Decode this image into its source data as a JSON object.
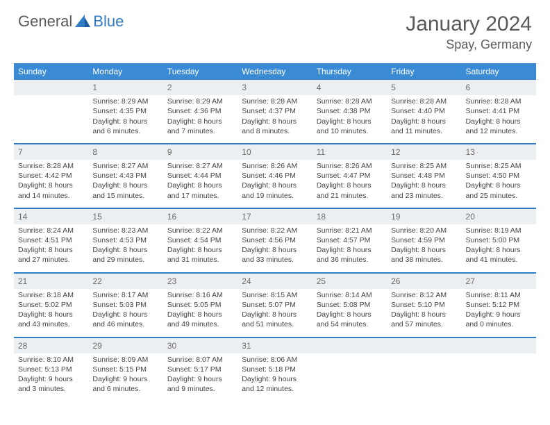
{
  "brand": {
    "part1": "General",
    "part2": "Blue"
  },
  "title": "January 2024",
  "location": "Spay, Germany",
  "colors": {
    "header_bg": "#3b8bd4",
    "rule": "#2f7bc4",
    "daynum_bg": "#eceff1",
    "text": "#444444",
    "title_text": "#5a5a5a"
  },
  "weekdays": [
    "Sunday",
    "Monday",
    "Tuesday",
    "Wednesday",
    "Thursday",
    "Friday",
    "Saturday"
  ],
  "weeks": [
    {
      "nums": [
        "",
        "1",
        "2",
        "3",
        "4",
        "5",
        "6"
      ],
      "cells": [
        "",
        "Sunrise: 8:29 AM\nSunset: 4:35 PM\nDaylight: 8 hours\nand 6 minutes.",
        "Sunrise: 8:29 AM\nSunset: 4:36 PM\nDaylight: 8 hours\nand 7 minutes.",
        "Sunrise: 8:28 AM\nSunset: 4:37 PM\nDaylight: 8 hours\nand 8 minutes.",
        "Sunrise: 8:28 AM\nSunset: 4:38 PM\nDaylight: 8 hours\nand 10 minutes.",
        "Sunrise: 8:28 AM\nSunset: 4:40 PM\nDaylight: 8 hours\nand 11 minutes.",
        "Sunrise: 8:28 AM\nSunset: 4:41 PM\nDaylight: 8 hours\nand 12 minutes."
      ]
    },
    {
      "nums": [
        "7",
        "8",
        "9",
        "10",
        "11",
        "12",
        "13"
      ],
      "cells": [
        "Sunrise: 8:28 AM\nSunset: 4:42 PM\nDaylight: 8 hours\nand 14 minutes.",
        "Sunrise: 8:27 AM\nSunset: 4:43 PM\nDaylight: 8 hours\nand 15 minutes.",
        "Sunrise: 8:27 AM\nSunset: 4:44 PM\nDaylight: 8 hours\nand 17 minutes.",
        "Sunrise: 8:26 AM\nSunset: 4:46 PM\nDaylight: 8 hours\nand 19 minutes.",
        "Sunrise: 8:26 AM\nSunset: 4:47 PM\nDaylight: 8 hours\nand 21 minutes.",
        "Sunrise: 8:25 AM\nSunset: 4:48 PM\nDaylight: 8 hours\nand 23 minutes.",
        "Sunrise: 8:25 AM\nSunset: 4:50 PM\nDaylight: 8 hours\nand 25 minutes."
      ]
    },
    {
      "nums": [
        "14",
        "15",
        "16",
        "17",
        "18",
        "19",
        "20"
      ],
      "cells": [
        "Sunrise: 8:24 AM\nSunset: 4:51 PM\nDaylight: 8 hours\nand 27 minutes.",
        "Sunrise: 8:23 AM\nSunset: 4:53 PM\nDaylight: 8 hours\nand 29 minutes.",
        "Sunrise: 8:22 AM\nSunset: 4:54 PM\nDaylight: 8 hours\nand 31 minutes.",
        "Sunrise: 8:22 AM\nSunset: 4:56 PM\nDaylight: 8 hours\nand 33 minutes.",
        "Sunrise: 8:21 AM\nSunset: 4:57 PM\nDaylight: 8 hours\nand 36 minutes.",
        "Sunrise: 8:20 AM\nSunset: 4:59 PM\nDaylight: 8 hours\nand 38 minutes.",
        "Sunrise: 8:19 AM\nSunset: 5:00 PM\nDaylight: 8 hours\nand 41 minutes."
      ]
    },
    {
      "nums": [
        "21",
        "22",
        "23",
        "24",
        "25",
        "26",
        "27"
      ],
      "cells": [
        "Sunrise: 8:18 AM\nSunset: 5:02 PM\nDaylight: 8 hours\nand 43 minutes.",
        "Sunrise: 8:17 AM\nSunset: 5:03 PM\nDaylight: 8 hours\nand 46 minutes.",
        "Sunrise: 8:16 AM\nSunset: 5:05 PM\nDaylight: 8 hours\nand 49 minutes.",
        "Sunrise: 8:15 AM\nSunset: 5:07 PM\nDaylight: 8 hours\nand 51 minutes.",
        "Sunrise: 8:14 AM\nSunset: 5:08 PM\nDaylight: 8 hours\nand 54 minutes.",
        "Sunrise: 8:12 AM\nSunset: 5:10 PM\nDaylight: 8 hours\nand 57 minutes.",
        "Sunrise: 8:11 AM\nSunset: 5:12 PM\nDaylight: 9 hours\nand 0 minutes."
      ]
    },
    {
      "nums": [
        "28",
        "29",
        "30",
        "31",
        "",
        "",
        ""
      ],
      "cells": [
        "Sunrise: 8:10 AM\nSunset: 5:13 PM\nDaylight: 9 hours\nand 3 minutes.",
        "Sunrise: 8:09 AM\nSunset: 5:15 PM\nDaylight: 9 hours\nand 6 minutes.",
        "Sunrise: 8:07 AM\nSunset: 5:17 PM\nDaylight: 9 hours\nand 9 minutes.",
        "Sunrise: 8:06 AM\nSunset: 5:18 PM\nDaylight: 9 hours\nand 12 minutes.",
        "",
        "",
        ""
      ]
    }
  ]
}
